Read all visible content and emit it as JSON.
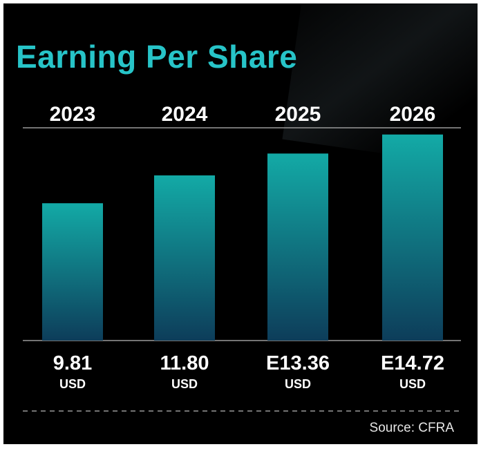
{
  "chart_data": {
    "type": "bar",
    "title": "Earning Per Share",
    "categories": [
      "2023",
      "2024",
      "2025",
      "2026"
    ],
    "values": [
      9.81,
      11.8,
      13.36,
      14.72
    ],
    "value_labels": [
      "9.81",
      "11.80",
      "E13.36",
      "E14.72"
    ],
    "unit": "USD",
    "xlabel": "",
    "ylabel": "",
    "ylim": [
      0,
      15.2
    ],
    "grid": false,
    "source": "Source: CFRA"
  },
  "colors": {
    "accent": "#27c4c8",
    "bar_top": "#13aaa6",
    "bar_bottom": "#0d3d5a",
    "background": "#000000",
    "axis": "#9a9a9a",
    "text": "#ffffff"
  }
}
